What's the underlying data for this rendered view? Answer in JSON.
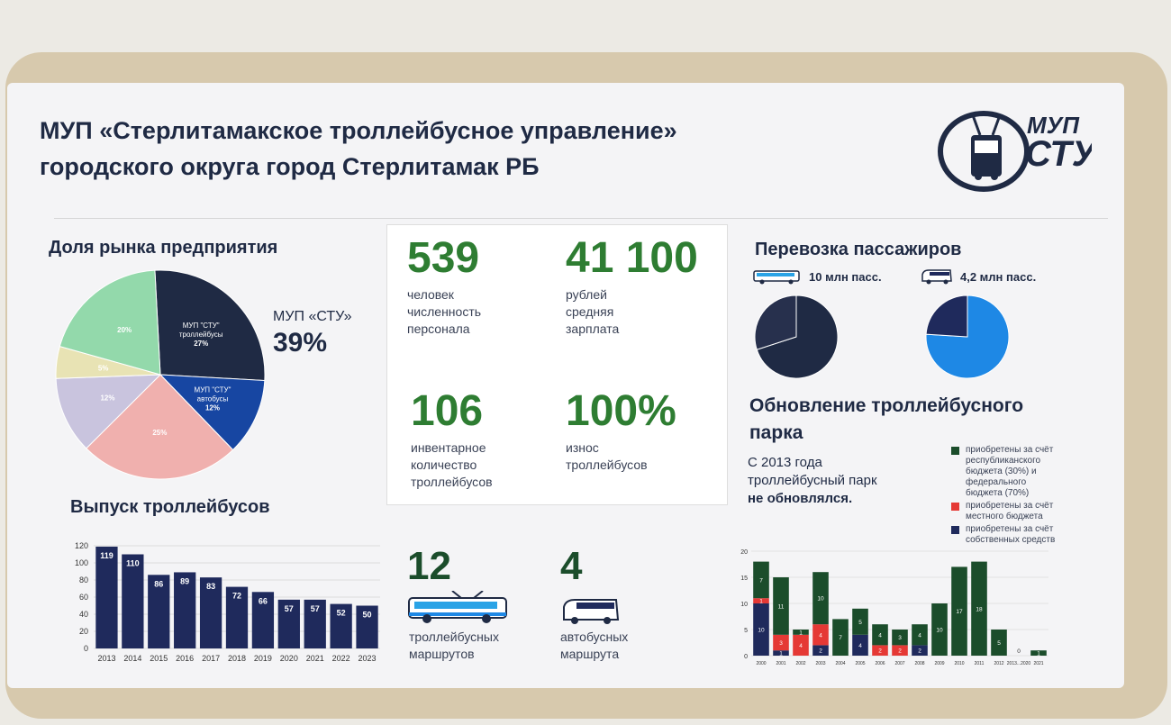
{
  "header": {
    "title_line1": "МУП «Стерлитамакское троллейбусное управление»",
    "title_line2": "городского округа город Стерлитамак РБ",
    "logo_top": "МУП",
    "logo_bottom": "СТУ"
  },
  "market_share": {
    "heading": "Доля рынка предприятия",
    "callout_label": "МУП «СТУ»",
    "callout_value": "39%"
  },
  "stats": {
    "staff_value": "539",
    "staff_caption": [
      "человек",
      "численность",
      "персонала"
    ],
    "salary_value": "41 100",
    "salary_caption": [
      "рублей",
      "средняя",
      "зарплата"
    ],
    "fleet_value": "106",
    "fleet_caption": [
      "инвентарное",
      "количество",
      "троллейбусов"
    ],
    "wear_value": "100%",
    "wear_caption": [
      "износ",
      "троллейбусов"
    ]
  },
  "routes": {
    "trolley_value": "12",
    "trolley_caption": [
      "троллейбусных",
      "маршрутов"
    ],
    "bus_value": "4",
    "bus_caption": [
      "автобусных",
      "маршрута"
    ]
  },
  "passengers": {
    "heading": "Перевозка пассажиров",
    "trolley_label": "10 млн пасс.",
    "bus_label": "4,2 млн пасс."
  },
  "renewal": {
    "heading_line1": "Обновление троллейбусного",
    "heading_line2": "парка",
    "text_line1": "С 2013 года",
    "text_line2": "троллейбусный парк",
    "text_line3": "не обновлялся.",
    "legend": [
      {
        "text": [
          "приобретены за счёт",
          "республиканского",
          "бюджета (30%) и",
          "федерального",
          "бюджета (70%)"
        ],
        "color": "#1b4d2b"
      },
      {
        "text": [
          "приобретены за счёт",
          "местного бюджета"
        ],
        "color": "#e53935"
      },
      {
        "text": [
          "приобретены за счёт",
          "собственных средств"
        ],
        "color": "#1f2a5c"
      }
    ]
  },
  "release_heading": "Выпуск троллейбусов",
  "colors": {
    "navy": "#1f2a5c",
    "green": "#2e7d32",
    "dark_green": "#1b4d2b",
    "red": "#e53935",
    "blue": "#1e88e5"
  },
  "chart_data": [
    {
      "type": "pie",
      "title": "Доля рынка предприятия",
      "slices": [
        {
          "label": "МУП \"СТУ\" троллейбусы",
          "value": 27,
          "pct_text": "27%",
          "color": "#1f2a44"
        },
        {
          "label": "МУП \"СТУ\" автобусы",
          "value": 12,
          "pct_text": "12%",
          "color": "#1746a2"
        },
        {
          "label": "",
          "value": 25,
          "pct_text": "25%",
          "color": "#f0b0ae"
        },
        {
          "label": "",
          "value": 12,
          "pct_text": "12%",
          "color": "#c9c4de"
        },
        {
          "label": "",
          "value": 5,
          "pct_text": "5%",
          "color": "#e8e3b4"
        },
        {
          "label": "",
          "value": 20,
          "pct_text": "20%",
          "color": "#93d9ab"
        }
      ]
    },
    {
      "type": "bar",
      "title": "Выпуск троллейбусов",
      "categories": [
        "2013",
        "2014",
        "2015",
        "2016",
        "2017",
        "2018",
        "2019",
        "2020",
        "2021",
        "2022",
        "2023"
      ],
      "values": [
        119,
        110,
        86,
        89,
        83,
        72,
        66,
        57,
        57,
        52,
        50
      ],
      "yticks": [
        0,
        20,
        40,
        60,
        80,
        100,
        120
      ],
      "ylim": [
        0,
        120
      ],
      "grid": true
    },
    {
      "type": "pie",
      "title": "10 млн пасс.",
      "slices": [
        {
          "label": "",
          "value": 70,
          "color": "#1f2a44"
        },
        {
          "label": "",
          "value": 30,
          "color": "#27304d"
        }
      ]
    },
    {
      "type": "pie",
      "title": "4,2 млн пасс.",
      "slices": [
        {
          "label": "",
          "value": 76,
          "color": "#1e88e5"
        },
        {
          "label": "",
          "value": 24,
          "color": "#1f2a5c"
        }
      ]
    },
    {
      "type": "bar",
      "title": "",
      "stacked": true,
      "categories": [
        "2000",
        "2001",
        "2002",
        "2003",
        "2004",
        "2005",
        "2006",
        "2007",
        "2008",
        "2009",
        "2010",
        "2011",
        "2012",
        "2013...2020",
        "2021"
      ],
      "series": [
        {
          "name": "приобретены за счёт собственных средств",
          "color": "#1f2a5c",
          "values": [
            10,
            1,
            0,
            2,
            0,
            4,
            0,
            0,
            2,
            0,
            0,
            0,
            0,
            0,
            0
          ]
        },
        {
          "name": "приобретены за счёт местного бюджета",
          "color": "#e53935",
          "values": [
            1,
            3,
            4,
            4,
            0,
            0,
            2,
            2,
            0,
            0,
            0,
            0,
            0,
            0,
            0
          ]
        },
        {
          "name": "приобретены за счёт республиканского бюджета (30%) и федерального бюджета (70%)",
          "color": "#1b4d2b",
          "values": [
            7,
            11,
            1,
            10,
            7,
            5,
            4,
            3,
            4,
            10,
            17,
            18,
            5,
            0,
            1
          ]
        }
      ],
      "yticks": [
        0,
        5,
        10,
        15,
        20
      ],
      "ylim": [
        0,
        20
      ]
    }
  ]
}
